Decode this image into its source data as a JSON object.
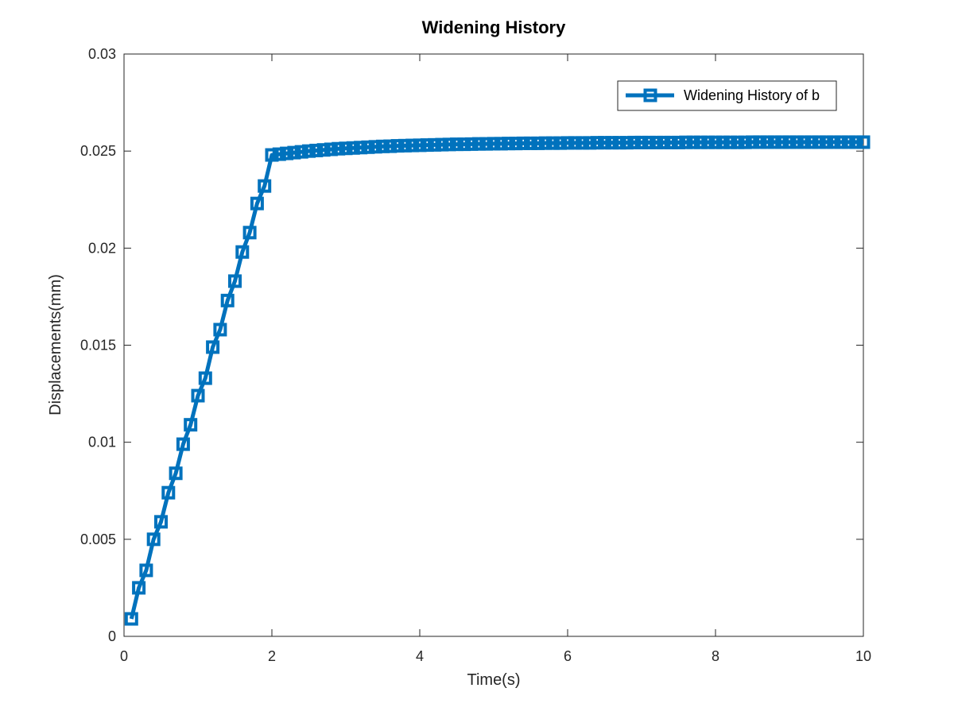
{
  "chart_data": {
    "type": "line",
    "title": "Widening History",
    "xlabel": "Time(s)",
    "ylabel": "Displacements(mm)",
    "xlim": [
      0,
      10
    ],
    "ylim": [
      0,
      0.03
    ],
    "x_ticks": [
      0,
      2,
      4,
      6,
      8,
      10
    ],
    "y_ticks": [
      0,
      0.005,
      0.01,
      0.015,
      0.02,
      0.025,
      0.03
    ],
    "x_tick_labels": [
      "0",
      "2",
      "4",
      "6",
      "8",
      "10"
    ],
    "y_tick_labels": [
      "0",
      "0.005",
      "0.01",
      "0.015",
      "0.02",
      "0.025",
      "0.03"
    ],
    "grid": false,
    "legend_position": "top-right",
    "marker": "square",
    "series": [
      {
        "name": "Widening History of b",
        "color": "#0072BD",
        "x": [
          0.1,
          0.2,
          0.3,
          0.4,
          0.5,
          0.6,
          0.7,
          0.8,
          0.9,
          1.0,
          1.1,
          1.2,
          1.3,
          1.4,
          1.5,
          1.6,
          1.7,
          1.8,
          1.9,
          2.0,
          2.1,
          2.2,
          2.3,
          2.4,
          2.5,
          2.6,
          2.7,
          2.8,
          2.9,
          3.0,
          3.1,
          3.2,
          3.3,
          3.4,
          3.5,
          3.6,
          3.7,
          3.8,
          3.9,
          4.0,
          4.1,
          4.2,
          4.3,
          4.4,
          4.5,
          4.6,
          4.7,
          4.8,
          4.9,
          5.0,
          5.1,
          5.2,
          5.3,
          5.4,
          5.5,
          5.6,
          5.7,
          5.8,
          5.9,
          6.0,
          6.1,
          6.2,
          6.3,
          6.4,
          6.5,
          6.6,
          6.7,
          6.8,
          6.9,
          7.0,
          7.1,
          7.2,
          7.3,
          7.4,
          7.5,
          7.6,
          7.7,
          7.8,
          7.9,
          8.0,
          8.1,
          8.2,
          8.3,
          8.4,
          8.5,
          8.6,
          8.7,
          8.8,
          8.9,
          9.0,
          9.1,
          9.2,
          9.3,
          9.4,
          9.5,
          9.6,
          9.7,
          9.8,
          9.9,
          10.0
        ],
        "y": [
          0.0009,
          0.0025,
          0.0034,
          0.005,
          0.0059,
          0.0074,
          0.0084,
          0.0099,
          0.0109,
          0.0124,
          0.0133,
          0.0149,
          0.0158,
          0.0173,
          0.0183,
          0.0198,
          0.0208,
          0.0223,
          0.0232,
          0.0248,
          0.02484,
          0.02488,
          0.02492,
          0.02496,
          0.025,
          0.02503,
          0.02506,
          0.02509,
          0.02512,
          0.02514,
          0.02516,
          0.02518,
          0.0252,
          0.02522,
          0.02524,
          0.02525,
          0.02527,
          0.02528,
          0.02529,
          0.0253,
          0.02531,
          0.02532,
          0.02533,
          0.02534,
          0.02535,
          0.02535,
          0.02536,
          0.02537,
          0.02537,
          0.02538,
          0.02538,
          0.02539,
          0.02539,
          0.0254,
          0.0254,
          0.0254,
          0.02541,
          0.02541,
          0.02541,
          0.02542,
          0.02542,
          0.02542,
          0.02542,
          0.02543,
          0.02543,
          0.02543,
          0.02543,
          0.02543,
          0.02544,
          0.02544,
          0.02544,
          0.02544,
          0.02544,
          0.02544,
          0.02544,
          0.02545,
          0.02545,
          0.02545,
          0.02545,
          0.02545,
          0.02545,
          0.02545,
          0.02545,
          0.02545,
          0.02546,
          0.02546,
          0.02546,
          0.02546,
          0.02546,
          0.02546,
          0.02546,
          0.02546,
          0.02546,
          0.02546,
          0.02546,
          0.02546,
          0.02546,
          0.02546,
          0.02546,
          0.02546
        ]
      }
    ]
  }
}
